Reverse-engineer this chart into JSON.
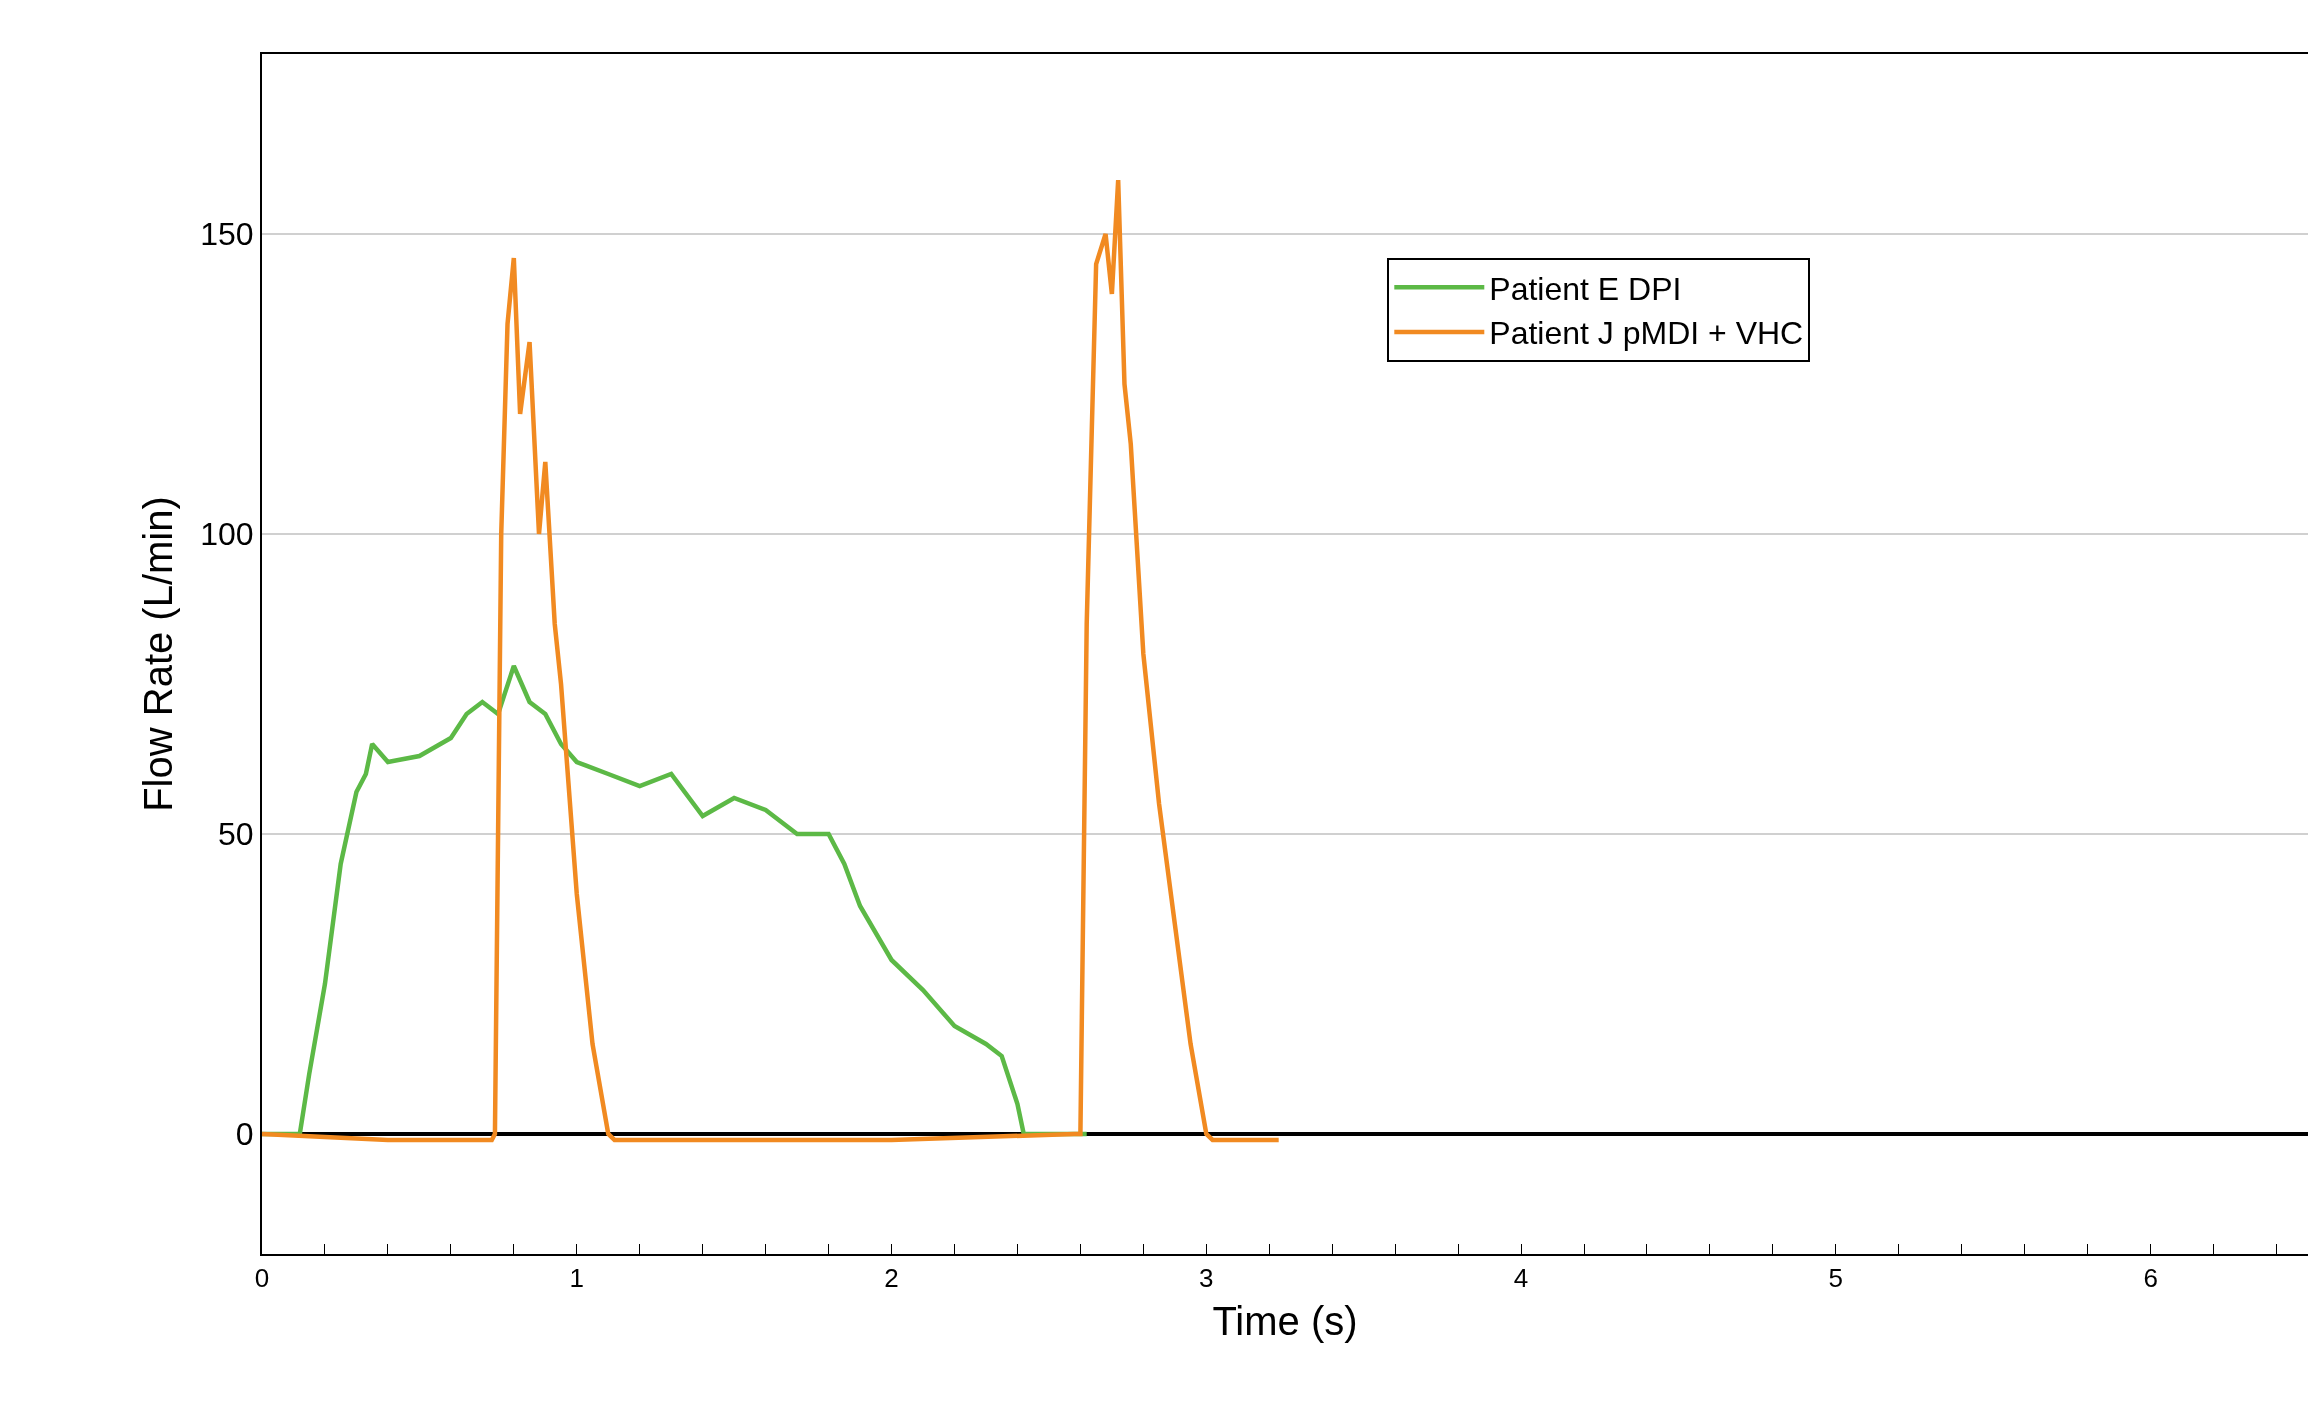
{
  "chart_data": {
    "type": "line",
    "xlabel": "Time (s)",
    "ylabel": "Flow Rate (L/min)",
    "xlim": [
      0,
      6.5
    ],
    "ylim": [
      -20,
      180
    ],
    "xticks": [
      0,
      {
        "value": 0.2,
        "label": null
      },
      {
        "value": 0.4,
        "label": null
      },
      {
        "value": 0.6,
        "label": null
      },
      {
        "value": 0.8,
        "label": null
      },
      1,
      {
        "value": 1.2,
        "label": null
      },
      {
        "value": 1.4,
        "label": null
      },
      {
        "value": 1.6,
        "label": null
      },
      {
        "value": 1.8,
        "label": null
      },
      2,
      {
        "value": 2.2,
        "label": null
      },
      {
        "value": 2.4,
        "label": null
      },
      {
        "value": 2.6,
        "label": null
      },
      {
        "value": 2.8,
        "label": null
      },
      3,
      {
        "value": 3.2,
        "label": null
      },
      {
        "value": 3.4,
        "label": null
      },
      {
        "value": 3.6,
        "label": null
      },
      {
        "value": 3.8,
        "label": null
      },
      4,
      {
        "value": 4.2,
        "label": null
      },
      {
        "value": 4.4,
        "label": null
      },
      {
        "value": 4.6,
        "label": null
      },
      {
        "value": 4.8,
        "label": null
      },
      5,
      {
        "value": 5.2,
        "label": null
      },
      {
        "value": 5.4,
        "label": null
      },
      {
        "value": 5.6,
        "label": null
      },
      {
        "value": 5.8,
        "label": null
      },
      6,
      {
        "value": 6.2,
        "label": null
      },
      {
        "value": 6.4,
        "label": null
      }
    ],
    "yticks": [
      0,
      50,
      100,
      150
    ],
    "grid": "y",
    "legend": "top right",
    "marker": "none",
    "line_style": "solid",
    "series": [
      {
        "name": "Patient E DPI",
        "color": "#5cb946",
        "x": [
          0,
          0.12,
          0.15,
          0.2,
          0.25,
          0.3,
          0.33,
          0.35,
          0.4,
          0.5,
          0.6,
          0.65,
          0.7,
          0.75,
          0.8,
          0.85,
          0.9,
          0.95,
          1.0,
          1.1,
          1.2,
          1.3,
          1.4,
          1.5,
          1.6,
          1.7,
          1.8,
          1.85,
          1.9,
          2.0,
          2.1,
          2.2,
          2.3,
          2.35,
          2.4,
          2.42,
          2.62
        ],
        "values": [
          0,
          0,
          10,
          25,
          45,
          57,
          60,
          65,
          62,
          63,
          66,
          70,
          72,
          70,
          78,
          72,
          70,
          65,
          62,
          60,
          58,
          60,
          53,
          56,
          54,
          50,
          50,
          45,
          38,
          29,
          24,
          18,
          15,
          13,
          5,
          0,
          0
        ]
      },
      {
        "name": "Patient J pMDI + VHC",
        "color": "#f18a21",
        "x": [
          0,
          0.4,
          0.73,
          0.74,
          0.76,
          0.78,
          0.8,
          0.82,
          0.85,
          0.88,
          0.9,
          0.93,
          0.95,
          1.0,
          1.05,
          1.1,
          1.12,
          1.5,
          2.0,
          2.58,
          2.6,
          2.62,
          2.65,
          2.68,
          2.7,
          2.72,
          2.74,
          2.76,
          2.8,
          2.85,
          2.9,
          2.95,
          3.0,
          3.02,
          3.23
        ],
        "values": [
          0,
          -1,
          -1,
          0,
          100,
          135,
          146,
          120,
          132,
          100,
          112,
          85,
          75,
          40,
          15,
          0,
          -1,
          -1,
          -1,
          0,
          0,
          85,
          145,
          150,
          140,
          159,
          125,
          115,
          80,
          55,
          35,
          15,
          0,
          -1,
          -1
        ]
      }
    ]
  }
}
